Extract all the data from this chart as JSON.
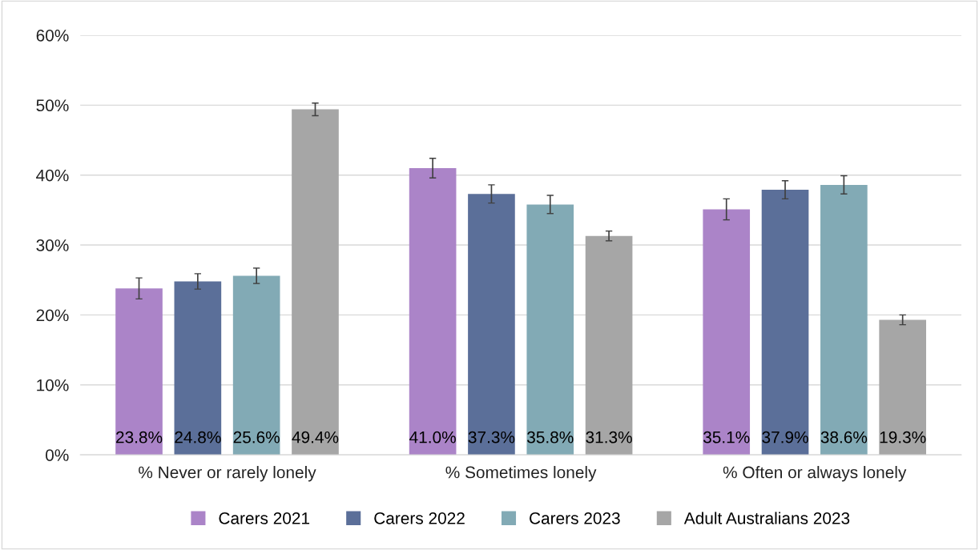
{
  "chart_data": {
    "type": "bar",
    "categories": [
      "% Never or rarely lonely",
      "% Sometimes lonely",
      "% Often or always lonely"
    ],
    "series": [
      {
        "name": "Carers 2021",
        "color": "#ab84c8",
        "values": [
          23.8,
          41.0,
          35.1
        ],
        "errors": [
          1.5,
          1.4,
          1.5
        ]
      },
      {
        "name": "Carers 2022",
        "color": "#5b6f99",
        "values": [
          24.8,
          37.3,
          37.9
        ],
        "errors": [
          1.1,
          1.3,
          1.3
        ]
      },
      {
        "name": "Carers 2023",
        "color": "#82aab5",
        "values": [
          25.6,
          35.8,
          38.6
        ],
        "errors": [
          1.1,
          1.3,
          1.3
        ]
      },
      {
        "name": "Adult Australians 2023",
        "color": "#a6a6a6",
        "values": [
          49.4,
          31.3,
          19.3
        ],
        "errors": [
          0.9,
          0.7,
          0.7
        ]
      }
    ],
    "ylim": [
      0,
      60
    ],
    "yticks": [
      {
        "value": 0,
        "label": "0%"
      },
      {
        "value": 10,
        "label": "10%"
      },
      {
        "value": 20,
        "label": "20%"
      },
      {
        "value": 30,
        "label": "30%"
      },
      {
        "value": 40,
        "label": "40%"
      },
      {
        "value": 50,
        "label": "50%"
      },
      {
        "value": 60,
        "label": "60%"
      }
    ],
    "value_labels": [
      [
        "23.8%",
        "41.0%",
        "35.1%"
      ],
      [
        "24.8%",
        "37.3%",
        "37.9%"
      ],
      [
        "25.6%",
        "35.8%",
        "38.6%"
      ],
      [
        "49.4%",
        "31.3%",
        "19.3%"
      ]
    ],
    "grid": "y",
    "legend": "bottom"
  }
}
